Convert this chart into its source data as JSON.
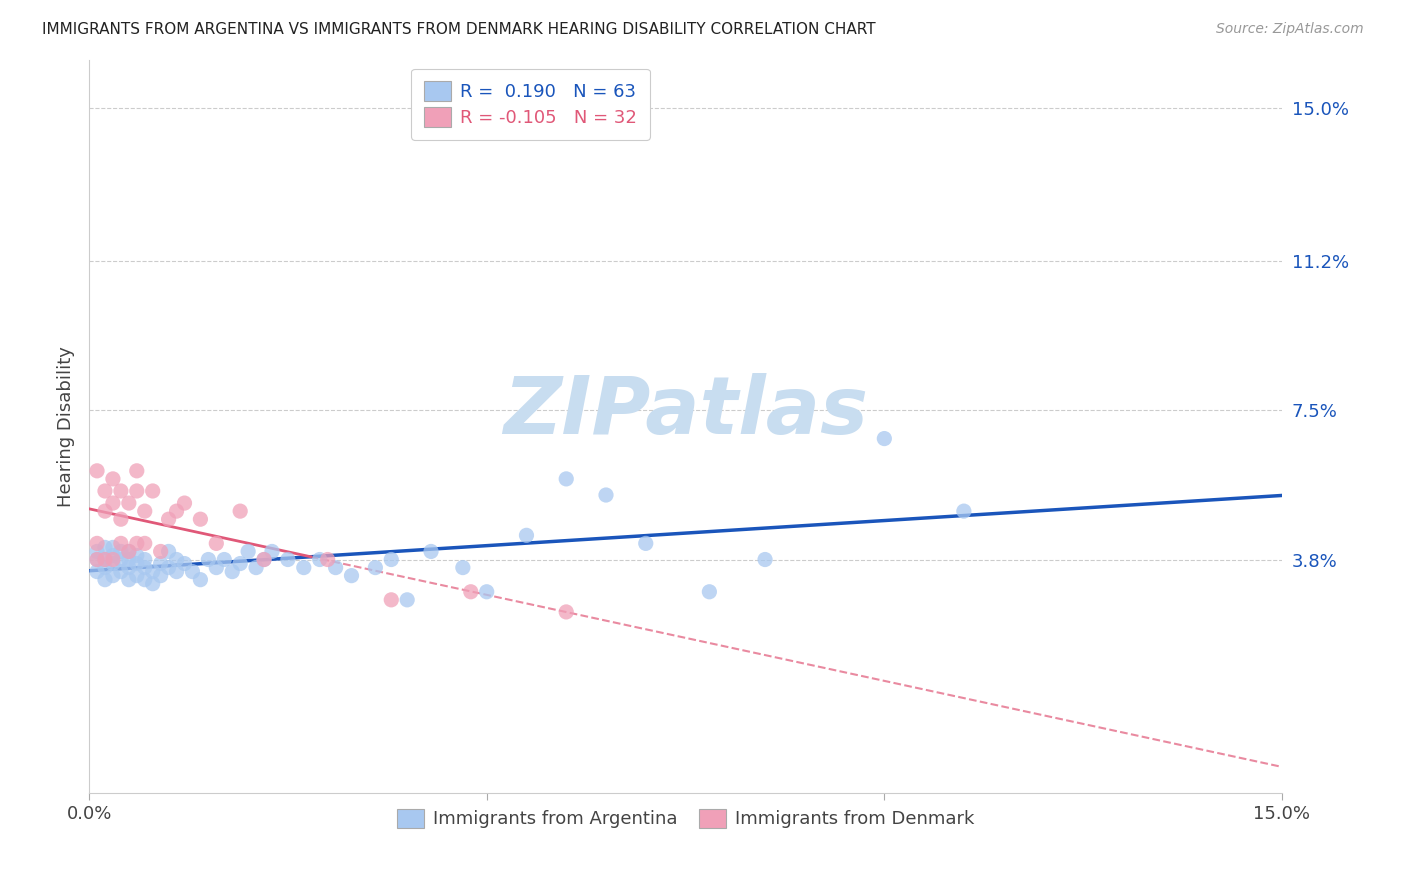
{
  "title": "IMMIGRANTS FROM ARGENTINA VS IMMIGRANTS FROM DENMARK HEARING DISABILITY CORRELATION CHART",
  "source": "Source: ZipAtlas.com",
  "ylabel": "Hearing Disability",
  "ytick_labels": [
    "3.8%",
    "7.5%",
    "11.2%",
    "15.0%"
  ],
  "ytick_values": [
    0.038,
    0.075,
    0.112,
    0.15
  ],
  "xlim": [
    0.0,
    0.15
  ],
  "ylim": [
    -0.02,
    0.162
  ],
  "r_argentina": 0.19,
  "n_argentina": 63,
  "r_denmark": -0.105,
  "n_denmark": 32,
  "color_argentina": "#a8c8f0",
  "color_denmark": "#f0a0b8",
  "trend_argentina_color": "#1a55bb",
  "trend_denmark_color": "#e05878",
  "watermark": "ZIPatlas",
  "watermark_color": "#c8ddf0",
  "legend_label_argentina": "Immigrants from Argentina",
  "legend_label_denmark": "Immigrants from Denmark",
  "argentina_x": [
    0.001,
    0.001,
    0.001,
    0.002,
    0.002,
    0.002,
    0.002,
    0.003,
    0.003,
    0.003,
    0.003,
    0.004,
    0.004,
    0.004,
    0.005,
    0.005,
    0.005,
    0.005,
    0.006,
    0.006,
    0.006,
    0.007,
    0.007,
    0.007,
    0.008,
    0.008,
    0.009,
    0.009,
    0.01,
    0.01,
    0.011,
    0.011,
    0.012,
    0.013,
    0.014,
    0.015,
    0.016,
    0.017,
    0.018,
    0.019,
    0.02,
    0.021,
    0.022,
    0.023,
    0.025,
    0.027,
    0.029,
    0.031,
    0.033,
    0.036,
    0.038,
    0.04,
    0.043,
    0.047,
    0.05,
    0.055,
    0.06,
    0.065,
    0.07,
    0.078,
    0.085,
    0.1,
    0.11
  ],
  "argentina_y": [
    0.035,
    0.038,
    0.04,
    0.033,
    0.036,
    0.038,
    0.041,
    0.034,
    0.037,
    0.039,
    0.041,
    0.035,
    0.038,
    0.04,
    0.033,
    0.036,
    0.038,
    0.04,
    0.034,
    0.037,
    0.039,
    0.033,
    0.036,
    0.038,
    0.032,
    0.035,
    0.034,
    0.037,
    0.036,
    0.04,
    0.035,
    0.038,
    0.037,
    0.035,
    0.033,
    0.038,
    0.036,
    0.038,
    0.035,
    0.037,
    0.04,
    0.036,
    0.038,
    0.04,
    0.038,
    0.036,
    0.038,
    0.036,
    0.034,
    0.036,
    0.038,
    0.028,
    0.04,
    0.036,
    0.03,
    0.044,
    0.058,
    0.054,
    0.042,
    0.03,
    0.038,
    0.068,
    0.05
  ],
  "denmark_x": [
    0.001,
    0.001,
    0.001,
    0.002,
    0.002,
    0.002,
    0.003,
    0.003,
    0.003,
    0.004,
    0.004,
    0.004,
    0.005,
    0.005,
    0.006,
    0.006,
    0.006,
    0.007,
    0.007,
    0.008,
    0.009,
    0.01,
    0.011,
    0.012,
    0.014,
    0.016,
    0.019,
    0.022,
    0.03,
    0.038,
    0.048,
    0.06
  ],
  "denmark_y": [
    0.038,
    0.042,
    0.06,
    0.038,
    0.05,
    0.055,
    0.038,
    0.052,
    0.058,
    0.042,
    0.048,
    0.055,
    0.04,
    0.052,
    0.042,
    0.055,
    0.06,
    0.042,
    0.05,
    0.055,
    0.04,
    0.048,
    0.05,
    0.052,
    0.048,
    0.042,
    0.05,
    0.038,
    0.038,
    0.028,
    0.03,
    0.025
  ],
  "trend_solid_end_argentina": 0.15,
  "trend_solid_end_denmark": 0.048,
  "trend_dash_start_denmark": 0.048
}
